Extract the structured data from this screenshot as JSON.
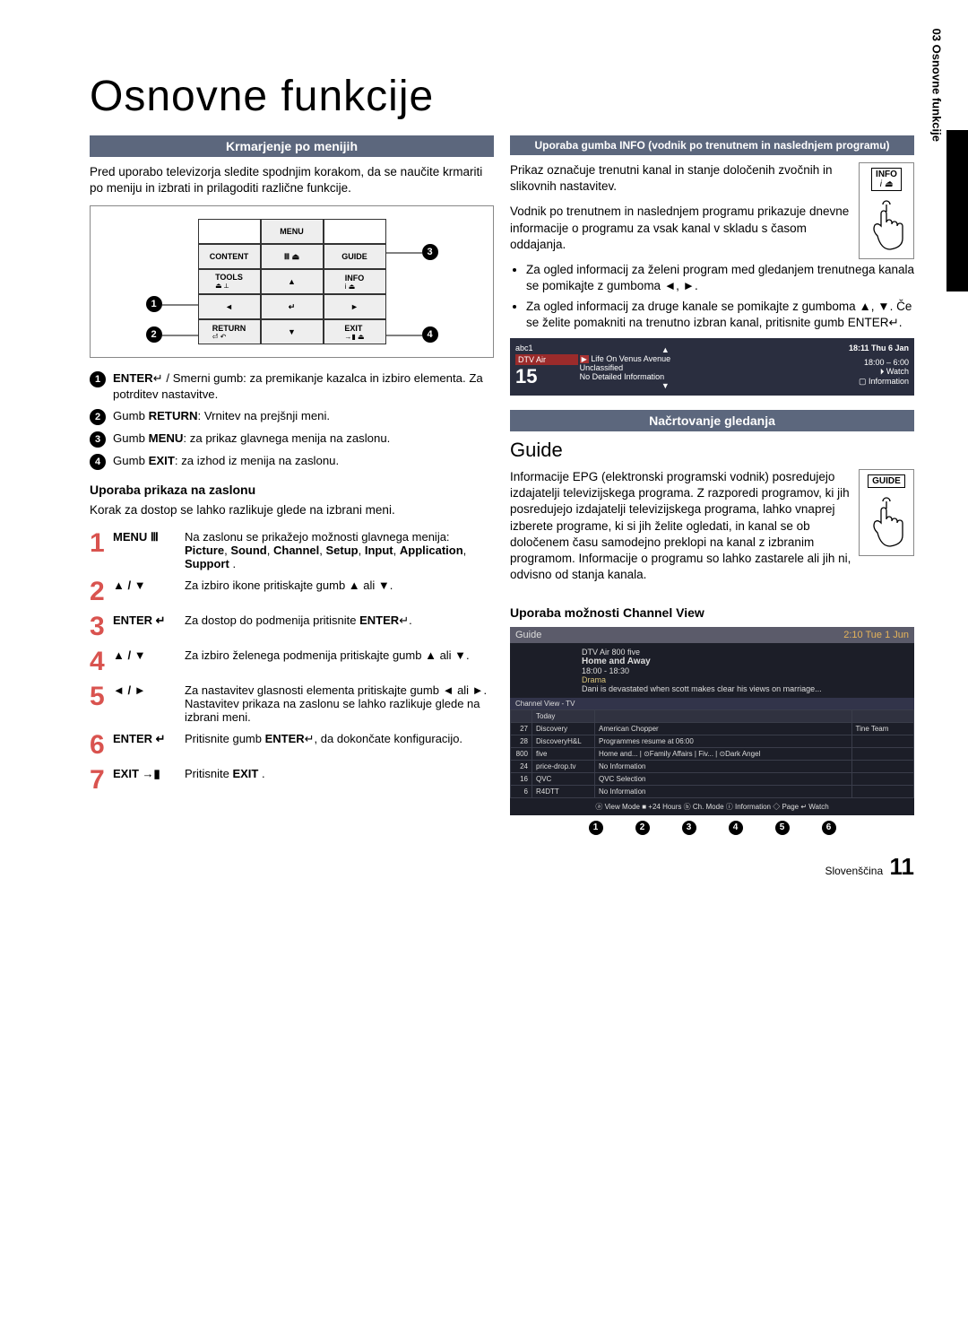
{
  "page": {
    "title": "Osnovne funkcije",
    "section_marker": "03  Osnovne funkcije",
    "footer_lang": "Slovenščina",
    "footer_page": "11"
  },
  "left": {
    "heading": "Krmarjenje po menijih",
    "intro": "Pred uporabo televizorja sledite spodnjim korakom, da se naučite krmariti po meniju in izbrati in prilagoditi različne funkcije.",
    "remote": {
      "menu": "MENU",
      "content": "CONTENT",
      "guide": "GUIDE",
      "tools": "TOOLS",
      "info": "INFO",
      "return": "RETURN",
      "exit": "EXIT"
    },
    "callouts": [
      {
        "n": "1",
        "text_html": "<b>ENTER</b>↵ / Smerni gumb: za premikanje kazalca in izbiro elementa. Za potrditev nastavitve."
      },
      {
        "n": "2",
        "text_html": "Gumb <b>RETURN</b>: Vrnitev na prejšnji meni."
      },
      {
        "n": "3",
        "text_html": "Gumb <b>MENU</b>: za prikaz glavnega menija na zaslonu."
      },
      {
        "n": "4",
        "text_html": "Gumb <b>EXIT</b>: za izhod iz menija na zaslonu."
      }
    ],
    "osd_heading": "Uporaba prikaza na zaslonu",
    "osd_note": "Korak za dostop se lahko razlikuje glede na izbrani meni.",
    "steps": [
      {
        "n": "1",
        "label": "MENU Ⅲ",
        "desc_html": "Na zaslonu se prikažejo možnosti glavnega menija:<br><b>Picture</b>, <b>Sound</b>, <b>Channel</b>, <b>Setup</b>, <b>Input</b>, <b>Application</b>, <b>Support</b> ."
      },
      {
        "n": "2",
        "label": "▲ / ▼",
        "desc_html": "Za izbiro ikone pritiskajte gumb ▲ ali ▼."
      },
      {
        "n": "3",
        "label": "ENTER ↵",
        "desc_html": "Za dostop do podmenija pritisnite <b>ENTER</b>↵."
      },
      {
        "n": "4",
        "label": "▲ / ▼",
        "desc_html": "Za izbiro želenega podmenija pritiskajte gumb ▲ ali ▼."
      },
      {
        "n": "5",
        "label": "◄ / ►",
        "desc_html": "Za nastavitev glasnosti elementa pritiskajte gumb ◄ ali ►. Nastavitev prikaza na zaslonu se lahko razlikuje glede na izbrani meni."
      },
      {
        "n": "6",
        "label": "ENTER ↵",
        "desc_html": "Pritisnite gumb <b>ENTER</b>↵, da dokončate konfiguracijo."
      },
      {
        "n": "7",
        "label": "EXIT →▮",
        "desc_html": "Pritisnite <b>EXIT</b> ."
      }
    ]
  },
  "right": {
    "heading": "Uporaba gumba INFO (vodnik po trenutnem in naslednjem programu)",
    "info_button": "INFO",
    "p1": "Prikaz označuje trenutni kanal in stanje določenih zvočnih in slikovnih nastavitev.",
    "p2": "Vodnik po trenutnem in naslednjem programu prikazuje dnevne informacije o programu za vsak kanal v skladu s časom oddajanja.",
    "bullets": [
      "Za ogled informacij za želeni program med gledanjem trenutnega kanala se pomikajte z gumboma ◄, ►.",
      "Za ogled informacij za druge kanale se pomikajte z gumboma ▲, ▼. Če se želite pomakniti na trenutno izbran kanal, pritisnite gumb ENTER↵."
    ],
    "info_osd": {
      "channel_name": "abc1",
      "service": "DTV Air",
      "channel_number": "15",
      "prog_title": "Life On Venus Avenue",
      "class": "Unclassified",
      "detail": "No Detailed Information",
      "clock": "18:11 Thu 6 Jan",
      "time": "18:00 – 6:00",
      "watch": "⏵ Watch",
      "infoline": "▢ Information"
    },
    "plan_heading": "Načrtovanje gledanja",
    "guide_title": "Guide",
    "guide_button": "GUIDE",
    "guide_body": "Informacije EPG (elektronski programski vodnik) posredujejo izdajatelji televizijskega programa. Z razporedi programov, ki jih posredujejo izdajatelji televizijskega programa, lahko vnaprej izberete programe, ki si jih želite ogledati, in kanal se ob določenem času samodejno preklopi na kanal z izbranim programom. Informacije o programu so lahko zastarele ali jih ni, odvisno od stanja kanala.",
    "cv_heading": "Uporaba možnosti Channel View",
    "guide_osd": {
      "title": "Guide",
      "clock": "2:10 Tue 1 Jun",
      "header": {
        "service": "DTV Air 800 five",
        "prog": "Home and Away",
        "time": "18:00 - 18:30",
        "genre": "Drama",
        "desc": "Dani is devastated when scott makes clear his views on marriage..."
      },
      "viewline": "Channel View - TV",
      "cols": [
        "",
        "Today",
        "",
        ""
      ],
      "rows": [
        [
          "27",
          "Discovery",
          "American Chopper",
          "Tine Team"
        ],
        [
          "28",
          "DiscoveryH&L",
          "Programmes resume at 06:00",
          ""
        ],
        [
          "800",
          "five",
          "Home and... | ⊙Family Affairs | Fiv... | ⊙Dark Angel",
          ""
        ],
        [
          "24",
          "price-drop.tv",
          "No Information",
          ""
        ],
        [
          "16",
          "QVC",
          "QVC Selection",
          ""
        ],
        [
          "6",
          "R4DTT",
          "No Information",
          ""
        ]
      ],
      "footer": "ⓐ View Mode  ■ +24 Hours  ⓑ Ch. Mode  ⓘ Information  ◇ Page  ↵ Watch"
    }
  }
}
